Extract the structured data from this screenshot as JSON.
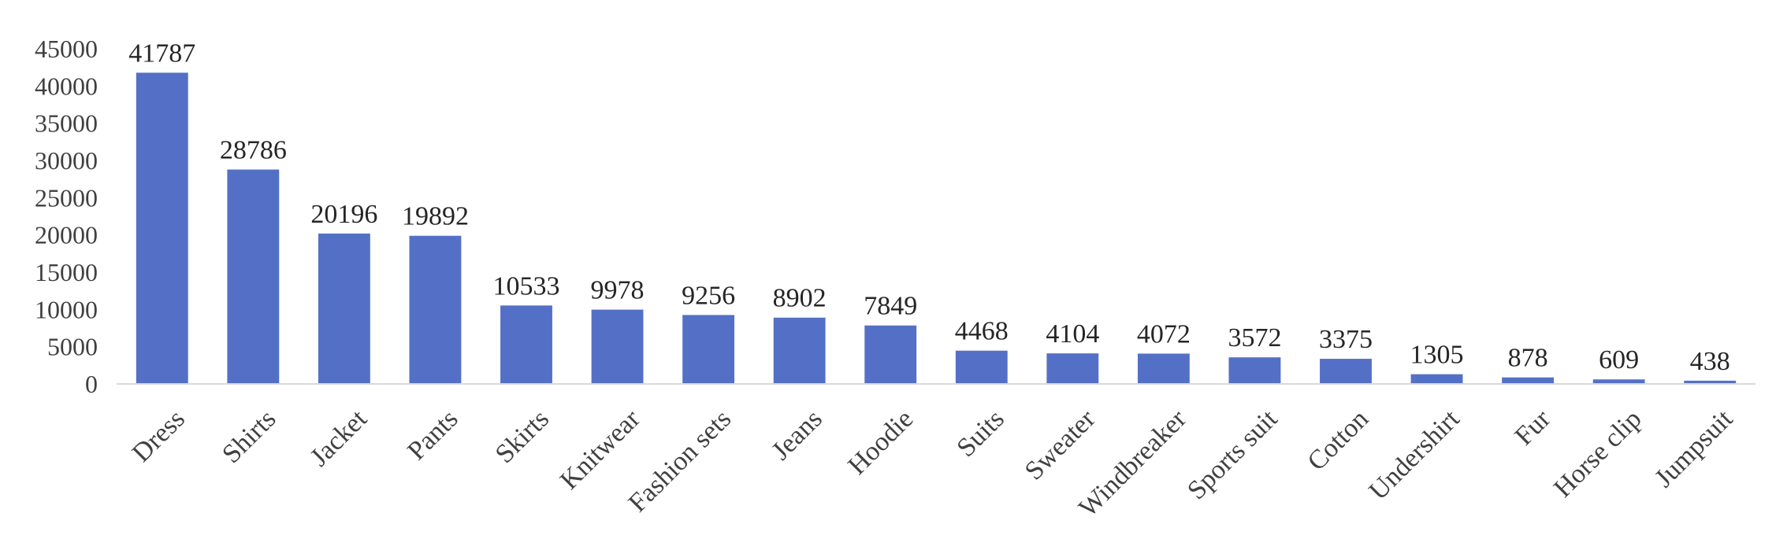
{
  "chart_data": {
    "type": "bar",
    "title": "",
    "xlabel": "",
    "ylabel": "",
    "categories": [
      "Dress",
      "Shirts",
      "Jacket",
      "Pants",
      "Skirts",
      "Knitwear",
      "Fashion sets",
      "Jeans",
      "Hoodie",
      "Suits",
      "Sweater",
      "Windbreaker",
      "Sports suit",
      "Cotton",
      "Undershirt",
      "Fur",
      "Horse clip",
      "Jumpsuit"
    ],
    "values": [
      41787,
      28786,
      20196,
      19892,
      10533,
      9978,
      9256,
      8902,
      7849,
      4468,
      4104,
      4072,
      3572,
      3375,
      1305,
      878,
      609,
      438
    ],
    "data_labels": [
      "41787",
      "28786",
      "20196",
      "19892",
      "10533",
      "9978",
      "9256",
      "8902",
      "7849",
      "4468",
      "4104",
      "4072",
      "3572",
      "3375",
      "1305",
      "878",
      "609",
      "438"
    ],
    "ylim": [
      0,
      45000
    ],
    "yticks": [
      0,
      5000,
      10000,
      15000,
      20000,
      25000,
      30000,
      35000,
      40000,
      45000
    ],
    "ytick_labels": [
      "0",
      "5000",
      "10000",
      "15000",
      "20000",
      "25000",
      "30000",
      "35000",
      "40000",
      "45000"
    ],
    "grid": false,
    "legend": "none",
    "bar_color": "#5470C6"
  }
}
